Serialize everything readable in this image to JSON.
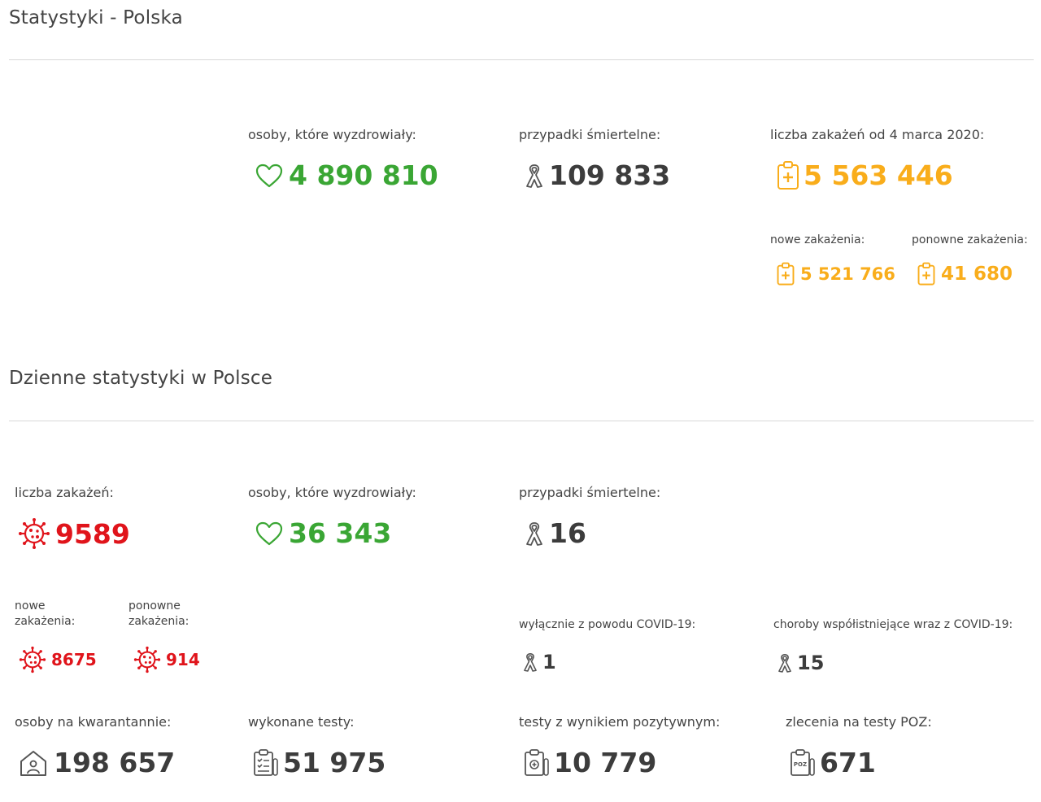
{
  "colors": {
    "green": "#3aa634",
    "orange": "#f9ad1b",
    "red": "#e0141b",
    "gray": "#3c3c3c"
  },
  "section1": {
    "title": "Statystyki - Polska",
    "recovered": {
      "label": "osoby, które wyzdrowiały:",
      "value": "4 890 810",
      "icon": "heart-icon"
    },
    "deaths": {
      "label": "przypadki śmiertelne:",
      "value": "109 833",
      "icon": "ribbon-icon"
    },
    "infections": {
      "label": "liczba zakażeń od 4 marca 2020:",
      "value": "5 563 446",
      "icon": "clipboard-medical-icon"
    },
    "new_infections": {
      "label": "nowe zakażenia:",
      "value": "5 521 766"
    },
    "re_infections": {
      "label": "ponowne zakażenia:",
      "value": "41 680"
    }
  },
  "section2": {
    "title": "Dzienne statystyki w Polsce",
    "infections": {
      "label": "liczba zakażeń:",
      "value": "9589",
      "icon": "virus-icon"
    },
    "recovered": {
      "label": "osoby, które wyzdrowiały:",
      "value": "36 343",
      "icon": "heart-icon"
    },
    "deaths": {
      "label": "przypadki śmiertelne:",
      "value": "16",
      "icon": "ribbon-icon"
    },
    "new_infections": {
      "label_line1": "nowe",
      "label_line2": "zakażenia:",
      "value": "8675"
    },
    "re_infections": {
      "label_line1": "ponowne",
      "label_line2": "zakażenia:",
      "value": "914"
    },
    "covid_only": {
      "label": "wyłącznie z powodu COVID-19:",
      "value": "1"
    },
    "comorbid": {
      "label": "choroby współistniejące wraz z COVID-19:",
      "value": "15"
    },
    "quarantine": {
      "label": "osoby na kwarantannie:",
      "value": "198 657",
      "icon": "house-icon"
    },
    "tests": {
      "label": "wykonane testy:",
      "value": "51 975",
      "icon": "test-clipboard-icon"
    },
    "positive_tests": {
      "label": "testy z wynikiem pozytywnym:",
      "value": "10 779",
      "icon": "test-tube-icon"
    },
    "poz_orders": {
      "label": "zlecenia na testy POZ:",
      "value": "671",
      "icon": "poz-icon",
      "icon_text": "POZ"
    }
  }
}
